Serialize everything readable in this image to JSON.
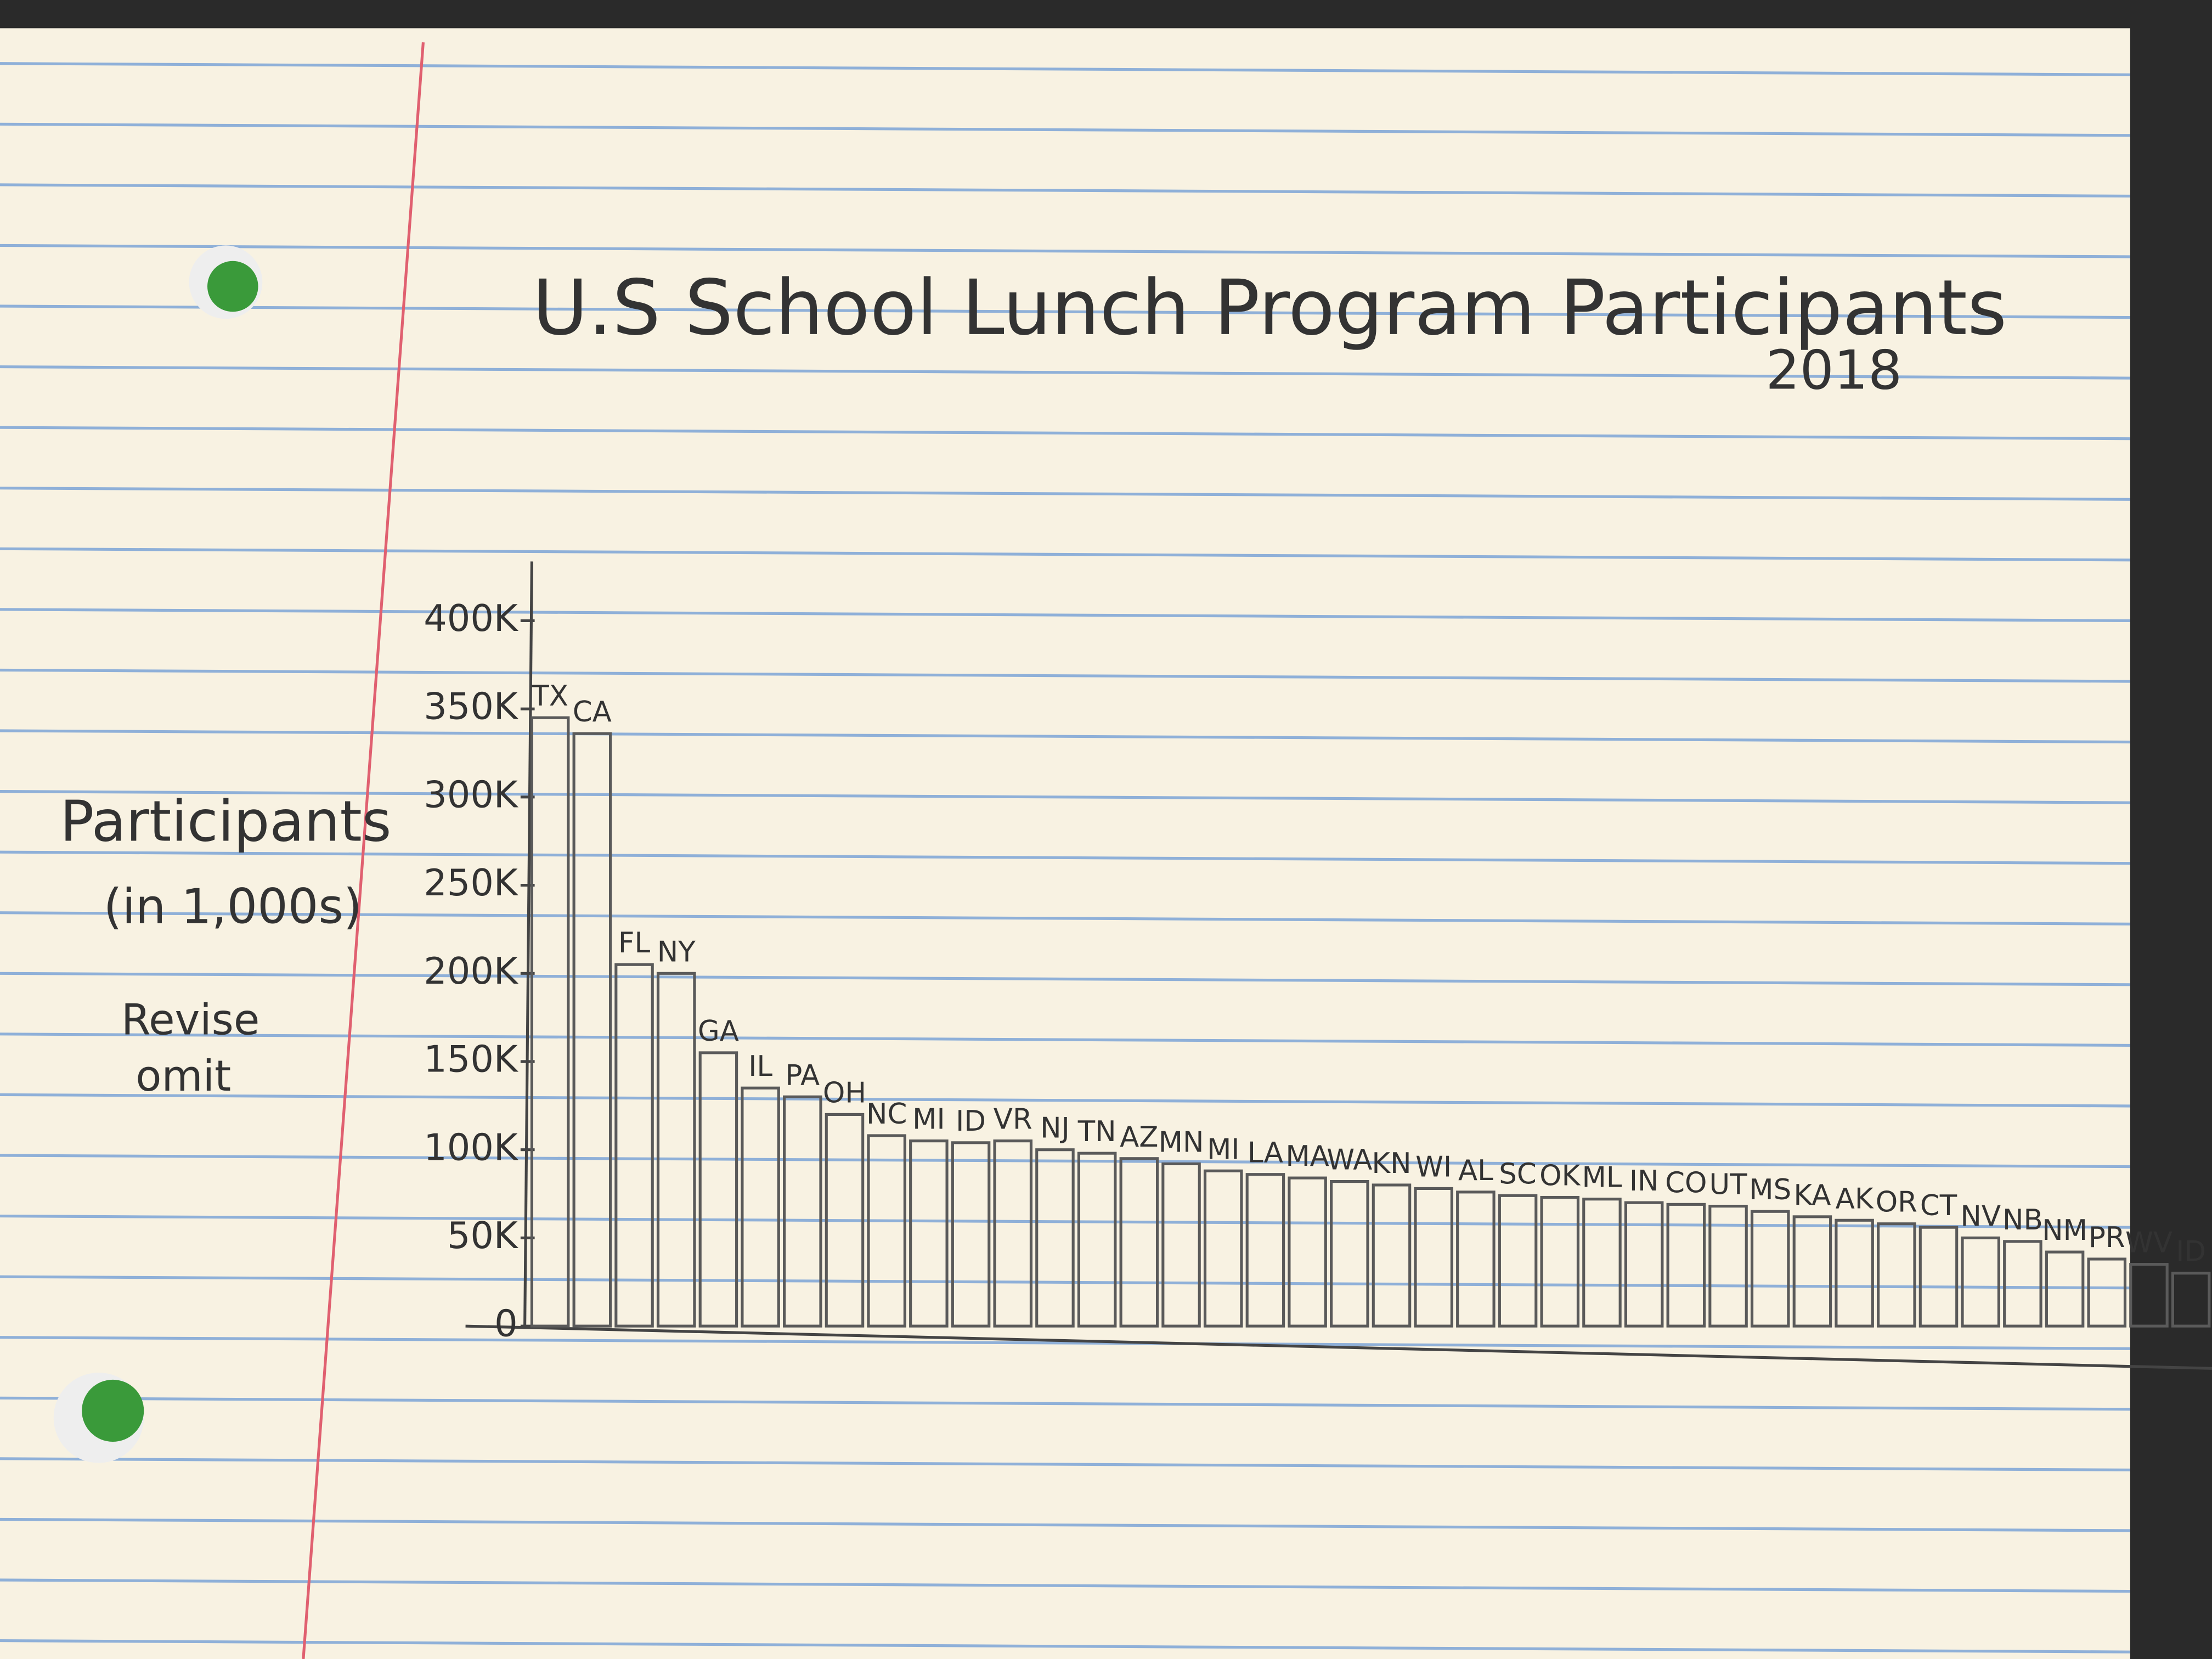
{
  "chart_data": {
    "type": "bar",
    "title": "U.S School Lunch Program Participants",
    "subtitle": "2018",
    "y_label": "Participants",
    "y_label_unit": "(in 1,000s)",
    "annotations": [
      "Revise",
      "omit"
    ],
    "categories": [
      "TX",
      "CA",
      "FL",
      "NY",
      "GA",
      "IL",
      "PA",
      "OH",
      "NC",
      "MI",
      "ID",
      "VR",
      "NJ",
      "TN",
      "AZ",
      "MN",
      "MI",
      "LA",
      "MA",
      "WA",
      "KN",
      "WI",
      "AL",
      "SC",
      "OK",
      "ML",
      "IN",
      "CO",
      "UT",
      "MS",
      "KA",
      "AK",
      "OR",
      "CT",
      "NV",
      "NB",
      "NM",
      "PR",
      "WV",
      "ID"
    ],
    "values": [
      345000,
      336000,
      205000,
      200000,
      155000,
      135000,
      130000,
      120000,
      108000,
      105000,
      104000,
      105000,
      100000,
      98000,
      95000,
      92000,
      88000,
      86000,
      84000,
      82000,
      80000,
      78000,
      76000,
      74000,
      73000,
      72000,
      70000,
      69000,
      68000,
      65000,
      62000,
      60000,
      58000,
      56000,
      50000,
      48000,
      42000,
      38000,
      35000,
      30000
    ],
    "color": "#5a5a5a",
    "ylim": [
      0,
      400000
    ],
    "yticks": [
      0,
      {
        "value": 50000,
        "label": "50K"
      },
      {
        "value": 100000,
        "label": "100K"
      },
      {
        "value": 150000,
        "label": "150K"
      },
      {
        "value": 200000,
        "label": "200K"
      },
      {
        "value": 250000,
        "label": "250K"
      },
      {
        "value": 300000,
        "label": "300K"
      },
      {
        "value": 350000,
        "label": "350K"
      },
      {
        "value": 400000,
        "label": "400K"
      }
    ],
    "grid": false
  }
}
